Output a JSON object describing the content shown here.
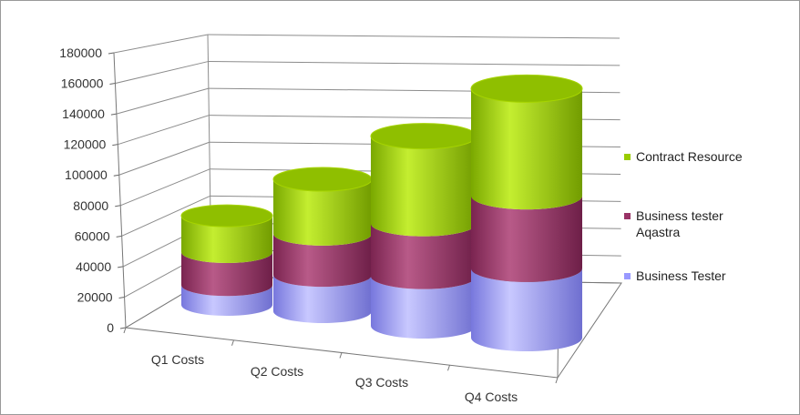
{
  "chart_data": {
    "type": "bar",
    "style": "3d-stacked-cylinder",
    "categories": [
      "Q1 Costs",
      "Q2 Costs",
      "Q3 Costs",
      "Q4 Costs"
    ],
    "series": [
      {
        "name": "Business Tester",
        "values": [
          12000,
          22000,
          30000,
          42000
        ],
        "color": "#9999ff"
      },
      {
        "name": "Business tester Aqastra",
        "values": [
          20000,
          25000,
          32000,
          44000
        ],
        "color": "#993366"
      },
      {
        "name": "Contract Resource",
        "values": [
          22000,
          33000,
          53000,
          65000
        ],
        "color": "#99cc00"
      }
    ],
    "y_ticks": [
      "0",
      "20000",
      "40000",
      "60000",
      "80000",
      "100000",
      "120000",
      "140000",
      "160000",
      "180000"
    ],
    "ylim": [
      0,
      180000
    ],
    "grid": true,
    "legend_position": "right"
  }
}
